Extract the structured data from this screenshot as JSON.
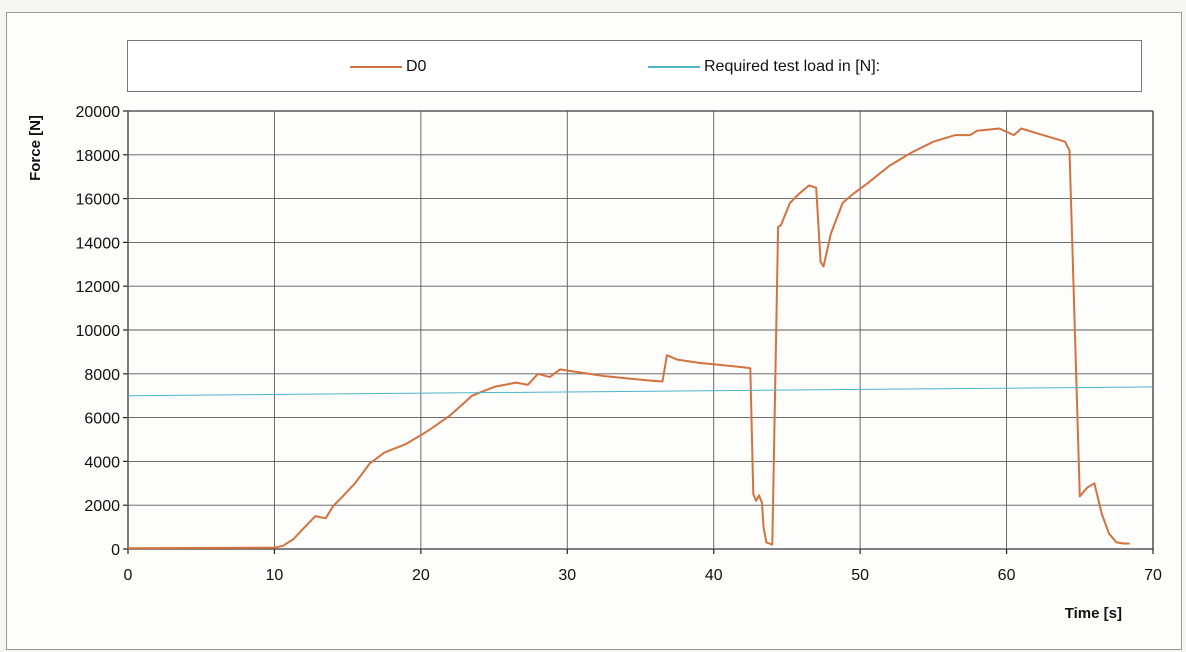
{
  "chart_data": {
    "type": "line",
    "xlabel": "Time [s]",
    "ylabel": "Force [N]",
    "xlim": [
      0,
      70
    ],
    "ylim": [
      0,
      20000
    ],
    "xticks": [
      0,
      10,
      20,
      30,
      40,
      50,
      60,
      70
    ],
    "yticks": [
      0,
      2000,
      4000,
      6000,
      8000,
      10000,
      12000,
      14000,
      16000,
      18000,
      20000
    ],
    "grid": true,
    "legend_position": "top",
    "colors": {
      "D0": "#d2733f",
      "required": "#4fb3cc",
      "grid": "#5a5a5a"
    },
    "series": [
      {
        "name": "D0",
        "x": [
          0,
          10,
          10.6,
          11.3,
          12,
          12.8,
          13.5,
          14,
          14.8,
          15.5,
          16.5,
          17.5,
          19,
          20.5,
          22,
          23.5,
          25,
          26.5,
          27.3,
          28,
          28.8,
          29.5,
          30,
          31,
          32.5,
          34,
          35.5,
          36.5,
          36.8,
          37.5,
          39,
          40.5,
          42,
          42.5,
          42.7,
          42.9,
          43.1,
          43.3,
          43.4,
          43.6,
          44,
          44.4,
          44.6,
          45.2,
          45.8,
          46.5,
          47,
          47.3,
          47.5,
          48,
          48.8,
          49.5,
          50.5,
          52,
          53.5,
          55,
          56.5,
          57.5,
          58,
          59.5,
          60.5,
          61,
          62,
          63,
          64,
          64.3,
          65,
          65.5,
          66,
          66.5,
          67,
          67.5,
          68,
          68.4
        ],
        "values": [
          30,
          60,
          150,
          450,
          950,
          1500,
          1400,
          1950,
          2500,
          3000,
          3900,
          4400,
          4800,
          5400,
          6100,
          7000,
          7400,
          7600,
          7500,
          8000,
          7850,
          8200,
          8150,
          8050,
          7900,
          7800,
          7700,
          7650,
          8850,
          8650,
          8500,
          8400,
          8300,
          8250,
          2500,
          2200,
          2450,
          2100,
          1000,
          300,
          200,
          14700,
          14800,
          15800,
          16200,
          16600,
          16500,
          13100,
          12900,
          14400,
          15800,
          16200,
          16700,
          17500,
          18100,
          18600,
          18900,
          18900,
          19100,
          19200,
          18900,
          19200,
          19000,
          18800,
          18600,
          18200,
          2400,
          2800,
          3000,
          1600,
          700,
          300,
          250,
          250
        ]
      },
      {
        "name": "Required test load in [N]:",
        "x": [
          0,
          70
        ],
        "values": [
          7000,
          7400
        ]
      }
    ]
  }
}
